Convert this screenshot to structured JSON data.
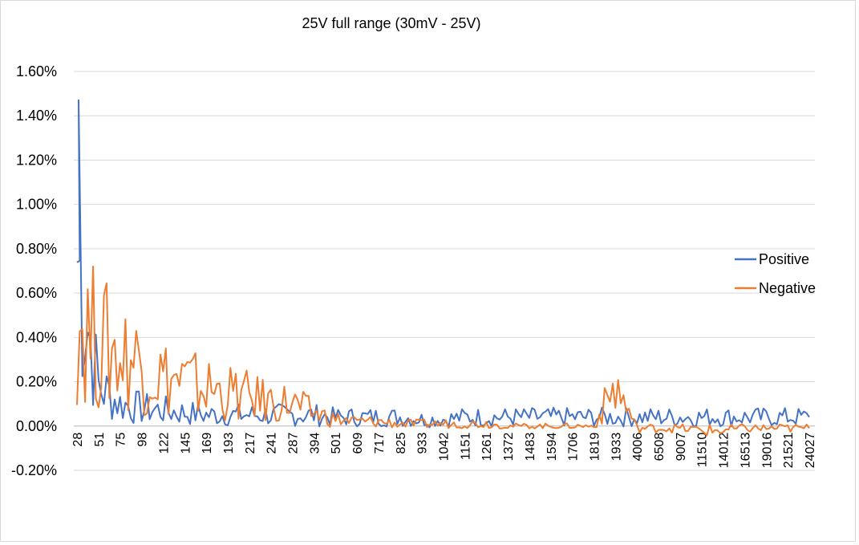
{
  "chart_data": {
    "type": "line",
    "title": "25V full range (30mV - 25V)",
    "xlabel": "",
    "ylabel": "",
    "ylim": [
      -0.002,
      0.016
    ],
    "y_ticks": [
      "1.60%",
      "1.40%",
      "1.20%",
      "1.00%",
      "0.80%",
      "0.60%",
      "0.40%",
      "0.20%",
      "0.00%",
      "-0.20%"
    ],
    "y_tick_values": [
      0.016,
      0.014,
      0.012,
      0.01,
      0.008,
      0.006,
      0.004,
      0.002,
      0.0,
      -0.002
    ],
    "x_tick_labels": [
      "28",
      "51",
      "75",
      "98",
      "122",
      "145",
      "169",
      "193",
      "217",
      "241",
      "287",
      "394",
      "501",
      "609",
      "717",
      "825",
      "933",
      "1042",
      "1151",
      "1261",
      "1372",
      "1483",
      "1594",
      "1706",
      "1819",
      "1933",
      "4006",
      "6508",
      "9007",
      "11510",
      "14012",
      "16513",
      "19016",
      "21521",
      "24027"
    ],
    "grid": true,
    "legend_position": "right",
    "series": [
      {
        "name": "Positive",
        "color": "#4472c4",
        "x": [
          "28",
          "51",
          "75",
          "98",
          "122",
          "145",
          "169",
          "193",
          "217",
          "241",
          "287",
          "394",
          "501",
          "609",
          "717",
          "825",
          "933",
          "1042",
          "1151",
          "1261",
          "1372",
          "1483",
          "1594",
          "1706",
          "1819",
          "1933",
          "4006",
          "6508",
          "9007",
          "11510",
          "14012",
          "16513",
          "19016",
          "21521",
          "24027"
        ],
        "values": [
          0.0075,
          0.0018,
          0.001,
          0.0008,
          0.0007,
          0.0006,
          0.0005,
          0.0005,
          0.0005,
          0.0005,
          0.0005,
          0.0005,
          0.0004,
          0.0004,
          0.0004,
          0.0004,
          0.0003,
          0.0003,
          0.0004,
          0.0004,
          0.0004,
          0.0004,
          0.0004,
          0.0004,
          0.0004,
          0.0004,
          0.0004,
          0.0004,
          0.0004,
          0.0004,
          0.0004,
          0.0004,
          0.0004,
          0.0004,
          0.0004
        ],
        "peak_value": 0.0147
      },
      {
        "name": "Negative",
        "color": "#ed7d31",
        "x": [
          "28",
          "51",
          "75",
          "98",
          "122",
          "145",
          "169",
          "193",
          "217",
          "241",
          "287",
          "394",
          "501",
          "609",
          "717",
          "825",
          "933",
          "1042",
          "1151",
          "1261",
          "1372",
          "1483",
          "1594",
          "1706",
          "1819",
          "1933",
          "4006",
          "6508",
          "9007",
          "11510",
          "14012",
          "16513",
          "19016",
          "21521",
          "24027"
        ],
        "values": [
          0.005,
          0.0038,
          0.0032,
          0.0029,
          0.0022,
          0.002,
          0.0017,
          0.0015,
          0.0013,
          0.0011,
          0.001,
          0.0006,
          0.0003,
          0.0002,
          0.0002,
          0.0001,
          0.0001,
          0.0001,
          0.0001,
          0.0001,
          0.0,
          0.0,
          0.0,
          0.0,
          0.0,
          0.0018,
          -0.0001,
          -0.0001,
          -0.0001,
          -0.0002,
          -0.0002,
          -0.0001,
          -0.0001,
          -0.0001,
          -0.0001
        ]
      }
    ]
  }
}
